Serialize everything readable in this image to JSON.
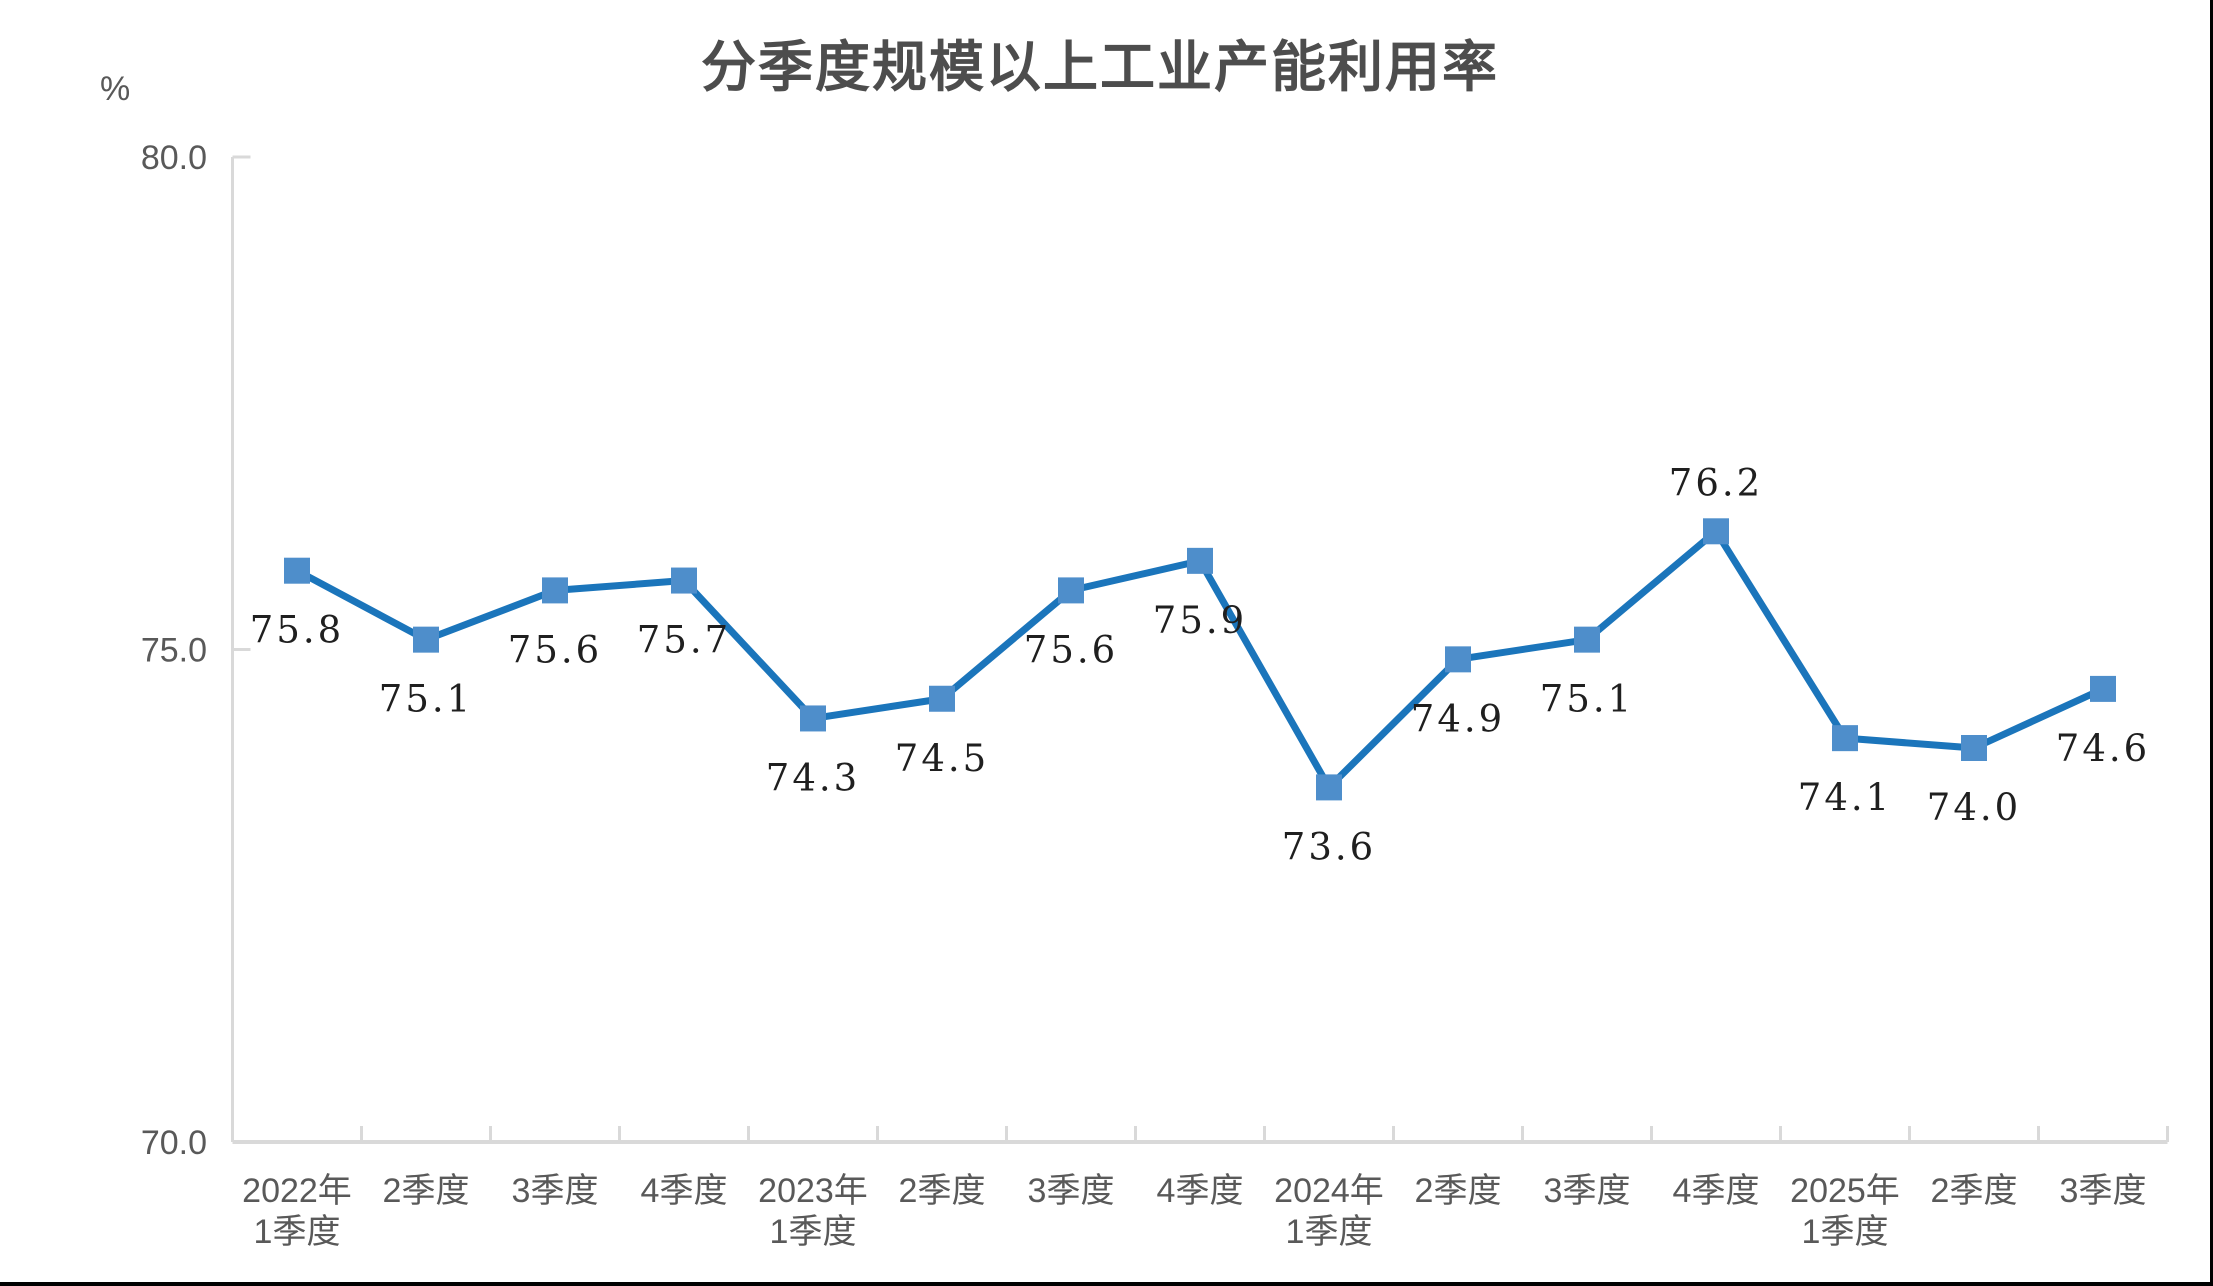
{
  "chart_data": {
    "type": "line",
    "title": "分季度规模以上工业产能利用率",
    "unit_label": "%",
    "categories": [
      [
        "2022年",
        "1季度"
      ],
      [
        "2季度"
      ],
      [
        "3季度"
      ],
      [
        "4季度"
      ],
      [
        "2023年",
        "1季度"
      ],
      [
        "2季度"
      ],
      [
        "3季度"
      ],
      [
        "4季度"
      ],
      [
        "2024年",
        "1季度"
      ],
      [
        "2季度"
      ],
      [
        "3季度"
      ],
      [
        "4季度"
      ],
      [
        "2025年",
        "1季度"
      ],
      [
        "2季度"
      ],
      [
        "3季度"
      ]
    ],
    "values": [
      75.8,
      75.1,
      75.6,
      75.7,
      74.3,
      74.5,
      75.6,
      75.9,
      73.6,
      74.9,
      75.1,
      76.2,
      74.1,
      74.0,
      74.6
    ],
    "point_labels": [
      "75.8",
      "75.1",
      "75.6",
      "75.7",
      "74.3",
      "74.5",
      "75.6",
      "75.9",
      "73.6",
      "74.9",
      "75.1",
      "76.2",
      "74.1",
      "74.0",
      "74.6"
    ],
    "label_positions": [
      "below",
      "below",
      "below",
      "below",
      "below",
      "below",
      "below",
      "below",
      "below",
      "below",
      "below",
      "above",
      "below",
      "below",
      "below"
    ],
    "ylim": [
      70.0,
      80.0
    ],
    "ytick_labels": [
      "80.0",
      "75.0",
      "70.0"
    ],
    "ytick_values": [
      80.0,
      75.0,
      70.0
    ],
    "grid": false,
    "legend": "none",
    "colors": {
      "line": "#1b75bb",
      "marker": "#4e8ecb",
      "axis": "#d9d9d9",
      "axis_text": "#595959",
      "data_label": "#1f1f1f",
      "title_text": "#4d4d4d"
    }
  }
}
